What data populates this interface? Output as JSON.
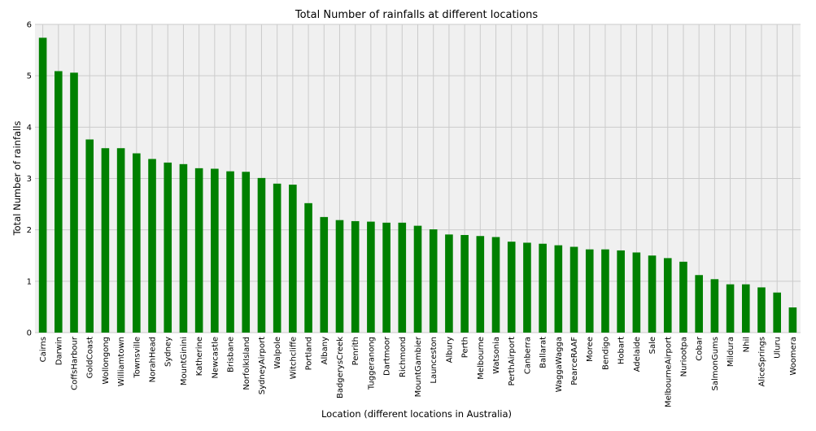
{
  "chart_data": {
    "type": "bar",
    "title": "Total Number of rainfalls at different locations",
    "xlabel": "Location (different locations in Australia)",
    "ylabel": "Total Number of rainfalls",
    "ylim": [
      0,
      6
    ],
    "yticks": [
      "0",
      "1",
      "2",
      "3",
      "4",
      "5",
      "6"
    ],
    "grid": true,
    "bar_color": "#008000",
    "background_color": "#f0f0f0",
    "grid_color": "#cbcbcb",
    "categories": [
      "Cairns",
      "Darwin",
      "CoffsHarbour",
      "GoldCoast",
      "Wollongong",
      "Williamtown",
      "Townsville",
      "NorahHead",
      "Sydney",
      "MountGinini",
      "Katherine",
      "Newcastle",
      "Brisbane",
      "NorfolkIsland",
      "SydneyAirport",
      "Walpole",
      "Witchcliffe",
      "Portland",
      "Albany",
      "BadgerysCreek",
      "Penrith",
      "Tuggeranong",
      "Dartmoor",
      "Richmond",
      "MountGambier",
      "Launceston",
      "Albury",
      "Perth",
      "Melbourne",
      "Watsonia",
      "PerthAirport",
      "Canberra",
      "Ballarat",
      "WaggaWagga",
      "PearceRAAF",
      "Moree",
      "Bendigo",
      "Hobart",
      "Adelaide",
      "Sale",
      "MelbourneAirport",
      "Nuriootpa",
      "Cobar",
      "SalmonGums",
      "Mildura",
      "Nhil",
      "AliceSprings",
      "Uluru",
      "Woomera"
    ],
    "values": [
      5.74,
      5.09,
      5.06,
      3.76,
      3.59,
      3.59,
      3.49,
      3.38,
      3.31,
      3.28,
      3.2,
      3.19,
      3.14,
      3.13,
      3.01,
      2.9,
      2.88,
      2.52,
      2.25,
      2.19,
      2.17,
      2.16,
      2.14,
      2.14,
      2.08,
      2.01,
      1.91,
      1.9,
      1.88,
      1.86,
      1.77,
      1.75,
      1.73,
      1.7,
      1.67,
      1.62,
      1.62,
      1.6,
      1.56,
      1.5,
      1.45,
      1.38,
      1.12,
      1.04,
      0.94,
      0.94,
      0.88,
      0.78,
      0.49
    ]
  }
}
